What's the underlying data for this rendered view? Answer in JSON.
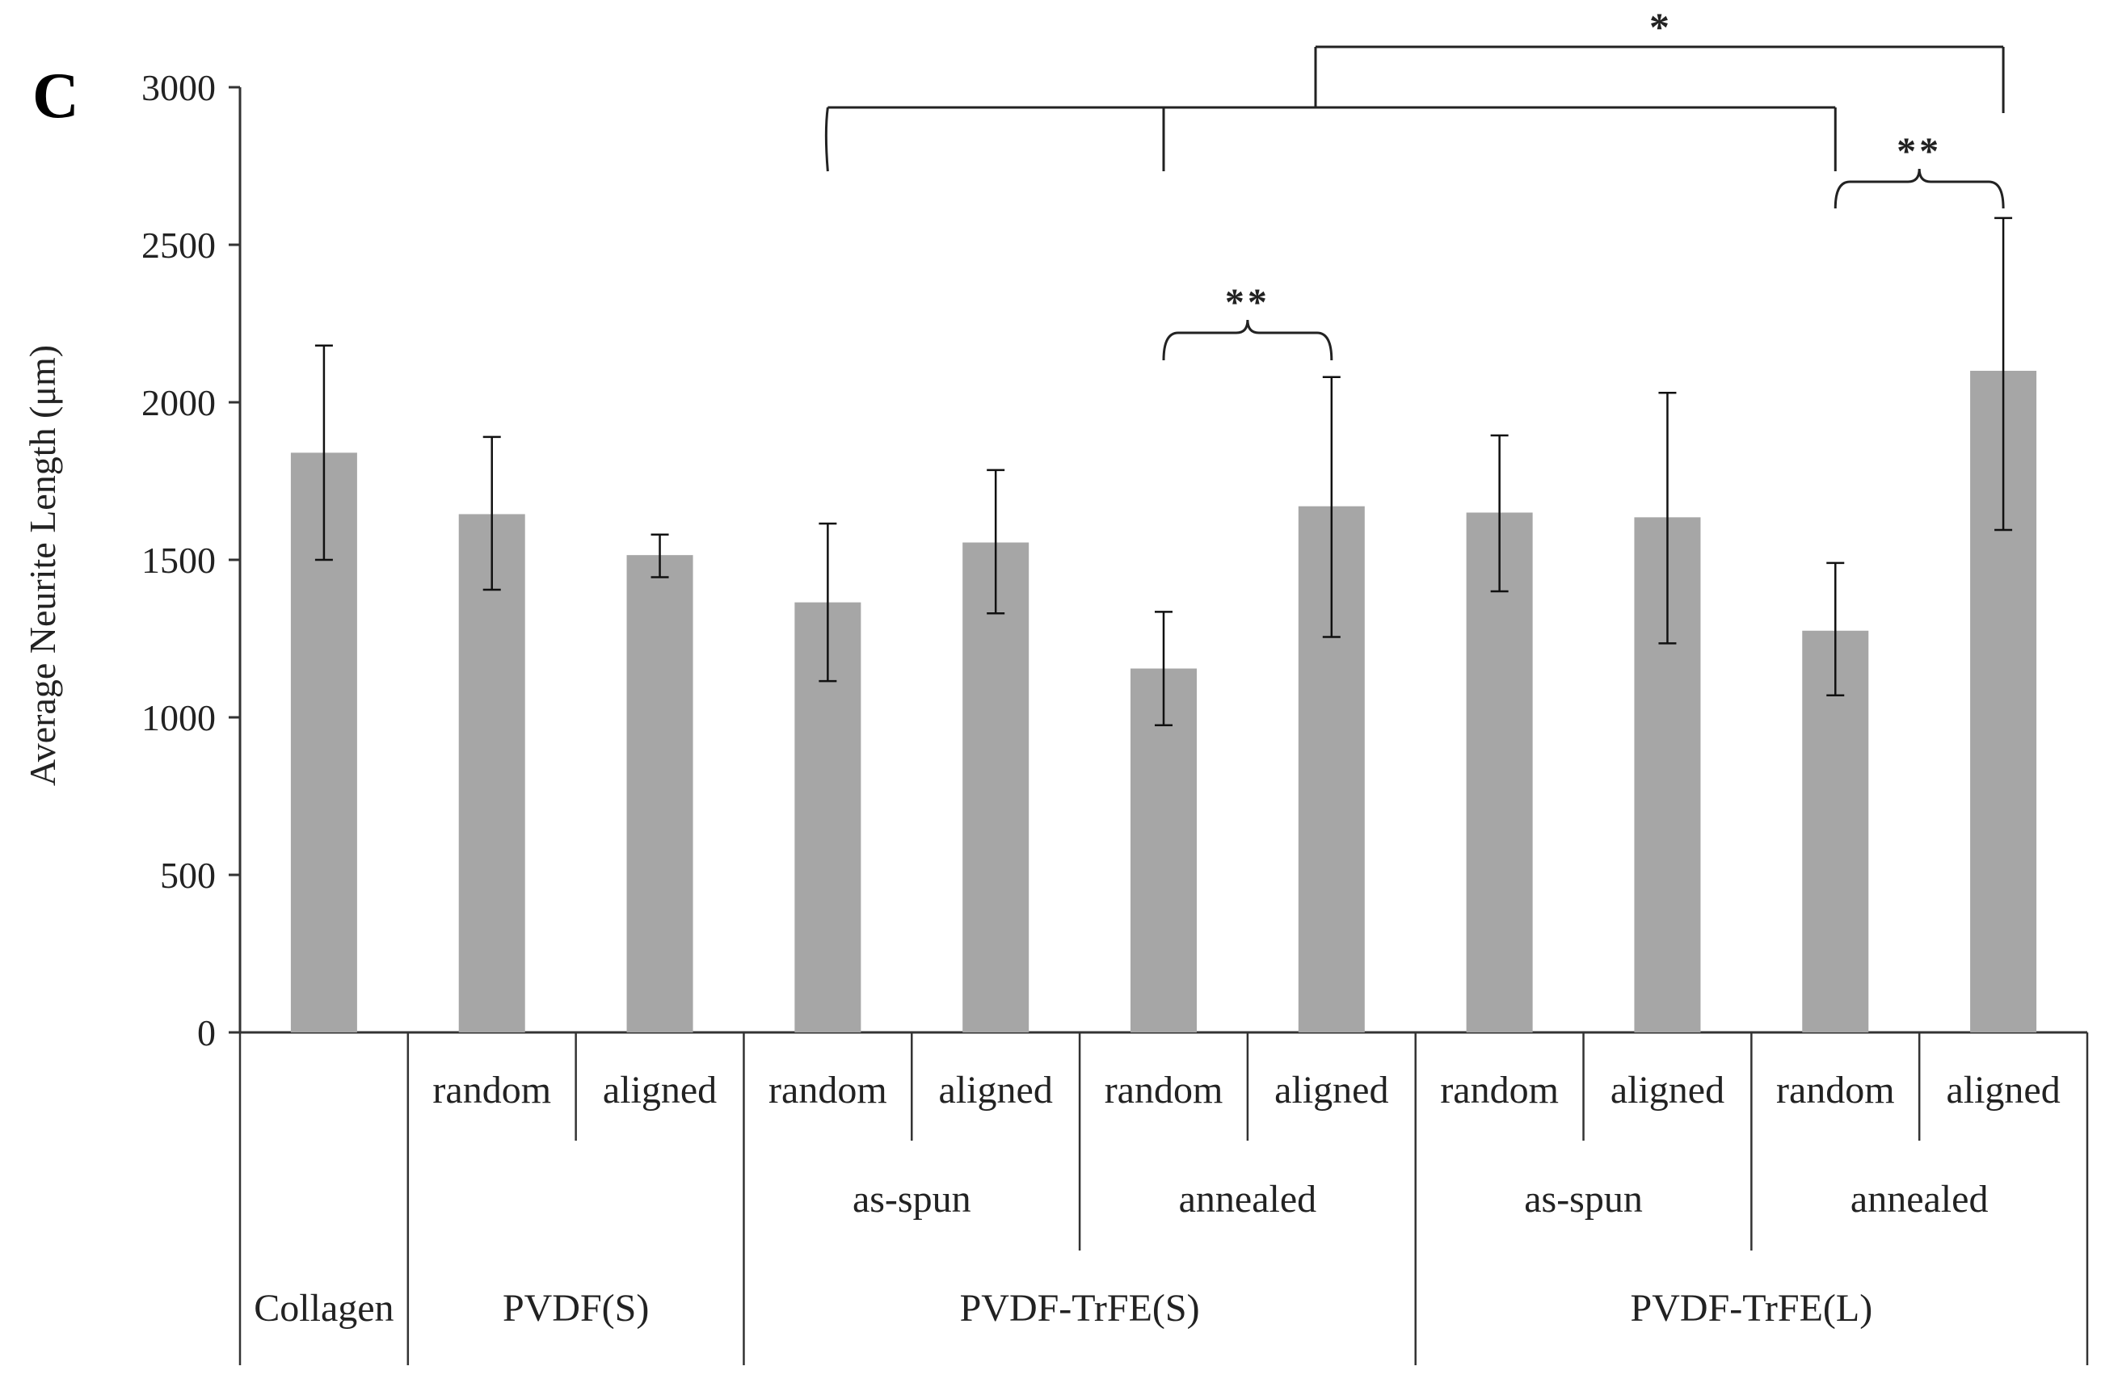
{
  "panel_label": "C",
  "chart_data": {
    "type": "bar",
    "ylabel": "Average Neurite Length (μm)",
    "ylim": [
      0,
      3000
    ],
    "yticks": [
      0,
      500,
      1000,
      1500,
      2000,
      2500,
      3000
    ],
    "grid": false,
    "bar_color": "#a6a6a6",
    "categories": [
      {
        "material": "Collagen",
        "processing": "",
        "orientation": ""
      },
      {
        "material": "PVDF(S)",
        "processing": "",
        "orientation": "random"
      },
      {
        "material": "PVDF(S)",
        "processing": "",
        "orientation": "aligned"
      },
      {
        "material": "PVDF-TrFE(S)",
        "processing": "as-spun",
        "orientation": "random"
      },
      {
        "material": "PVDF-TrFE(S)",
        "processing": "as-spun",
        "orientation": "aligned"
      },
      {
        "material": "PVDF-TrFE(S)",
        "processing": "annealed",
        "orientation": "random"
      },
      {
        "material": "PVDF-TrFE(S)",
        "processing": "annealed",
        "orientation": "aligned"
      },
      {
        "material": "PVDF-TrFE(L)",
        "processing": "as-spun",
        "orientation": "random"
      },
      {
        "material": "PVDF-TrFE(L)",
        "processing": "as-spun",
        "orientation": "aligned"
      },
      {
        "material": "PVDF-TrFE(L)",
        "processing": "annealed",
        "orientation": "random"
      },
      {
        "material": "PVDF-TrFE(L)",
        "processing": "annealed",
        "orientation": "aligned"
      }
    ],
    "values": [
      1840,
      1645,
      1515,
      1365,
      1555,
      1155,
      1670,
      1650,
      1635,
      1275,
      2100
    ],
    "error_low": [
      1500,
      1405,
      1445,
      1115,
      1330,
      975,
      1255,
      1400,
      1235,
      1070,
      1595
    ],
    "error_high": [
      2180,
      1890,
      1580,
      1615,
      1785,
      1335,
      2080,
      1895,
      2030,
      1490,
      2585
    ],
    "level1_labels": [
      {
        "label": "random",
        "from": 1,
        "to": 1
      },
      {
        "label": "aligned",
        "from": 2,
        "to": 2
      },
      {
        "label": "random",
        "from": 3,
        "to": 3
      },
      {
        "label": "aligned",
        "from": 4,
        "to": 4
      },
      {
        "label": "random",
        "from": 5,
        "to": 5
      },
      {
        "label": "aligned",
        "from": 6,
        "to": 6
      },
      {
        "label": "random",
        "from": 7,
        "to": 7
      },
      {
        "label": "aligned",
        "from": 8,
        "to": 8
      },
      {
        "label": "random",
        "from": 9,
        "to": 9
      },
      {
        "label": "aligned",
        "from": 10,
        "to": 10
      }
    ],
    "level2_labels": [
      {
        "label": "as-spun",
        "from": 3,
        "to": 4
      },
      {
        "label": "annealed",
        "from": 5,
        "to": 6
      },
      {
        "label": "as-spun",
        "from": 7,
        "to": 8
      },
      {
        "label": "annealed",
        "from": 9,
        "to": 10
      }
    ],
    "level3_labels": [
      {
        "label": "Collagen",
        "from": 0,
        "to": 0
      },
      {
        "label": "PVDF(S)",
        "from": 1,
        "to": 2
      },
      {
        "label": "PVDF-TrFE(S)",
        "from": 3,
        "to": 6
      },
      {
        "label": "PVDF-TrFE(L)",
        "from": 7,
        "to": 10
      }
    ],
    "annotations": [
      {
        "label": "**",
        "from_bar": 5,
        "to_bar": 6
      },
      {
        "label": "**",
        "from_bar": 9,
        "to_bar": 10
      },
      {
        "label": "*",
        "group_bars": [
          3,
          5,
          9
        ],
        "compare_bar": 10
      }
    ]
  }
}
